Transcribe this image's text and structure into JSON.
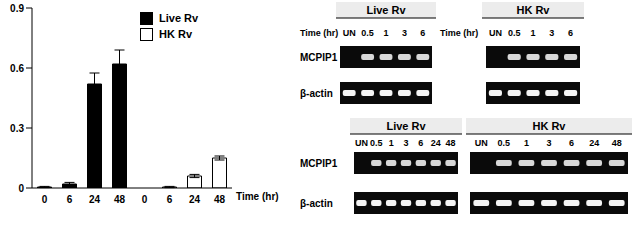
{
  "chart_data": {
    "type": "bar",
    "categories": [
      "0",
      "6",
      "24",
      "48",
      "0",
      "6",
      "24",
      "48"
    ],
    "x_label": "Time (hr)",
    "series": [
      {
        "name": "Live Rv",
        "color": "#000000",
        "values": [
          0.005,
          0.02,
          0.52,
          0.62,
          null,
          null,
          null,
          null
        ],
        "errors": [
          0.003,
          0.008,
          0.055,
          0.07,
          null,
          null,
          null,
          null
        ]
      },
      {
        "name": "HK Rv",
        "color": "#ffffff",
        "values": [
          null,
          null,
          null,
          null,
          0,
          0.005,
          0.06,
          0.15
        ],
        "errors": [
          null,
          null,
          null,
          null,
          0,
          0.003,
          0.008,
          0.01
        ]
      }
    ],
    "ylim": [
      0,
      0.9
    ],
    "yticks": [
      0,
      0.3,
      0.6,
      0.9
    ],
    "legend": "upper right"
  },
  "blots": [
    {
      "time_label": "Time (hr)",
      "panels": [
        {
          "title": "Live Rv",
          "lanes": [
            "UN",
            "0.5",
            "1",
            "3",
            "6"
          ]
        },
        {
          "title": "HK Rv",
          "lanes": [
            "UN",
            "0.5",
            "1",
            "3",
            "6"
          ]
        }
      ],
      "rows": [
        "MCPIP1",
        "β-actin"
      ]
    },
    {
      "panels": [
        {
          "title": "Live Rv",
          "lanes": [
            "UN",
            "0.5",
            "1",
            "3",
            "6",
            "24",
            "48"
          ]
        },
        {
          "title": "HK Rv",
          "lanes": [
            "UN",
            "0.5",
            "1",
            "3",
            "6",
            "24",
            "48"
          ]
        }
      ],
      "rows": [
        "MCPIP1",
        "β-actin"
      ]
    }
  ]
}
